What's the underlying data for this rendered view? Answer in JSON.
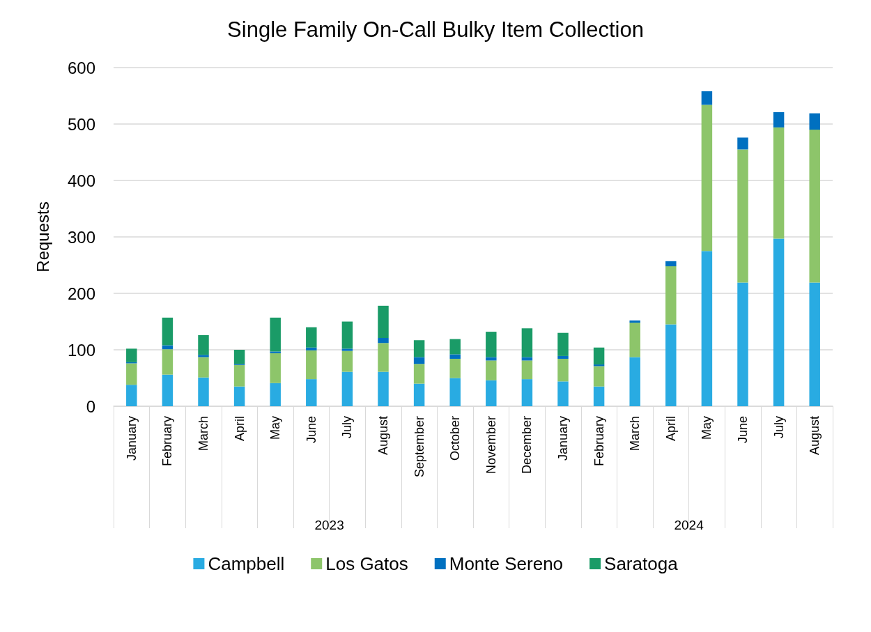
{
  "chart_data": {
    "type": "bar",
    "title": "Single Family On-Call Bulky Item Collection",
    "ylabel": "Requests",
    "categories": [
      "January",
      "February",
      "March",
      "April",
      "May",
      "June",
      "July",
      "August",
      "September",
      "October",
      "November",
      "December",
      "January",
      "February",
      "March",
      "April",
      "May",
      "June",
      "July",
      "August"
    ],
    "series": [
      {
        "name": "Campbell",
        "color": "#29abe2",
        "values": [
          38,
          56,
          51,
          35,
          41,
          48,
          61,
          61,
          40,
          50,
          46,
          48,
          44,
          35,
          87,
          145,
          275,
          219,
          297,
          219
        ]
      },
      {
        "name": "Los Gatos",
        "color": "#8dc56a",
        "values": [
          38,
          45,
          36,
          38,
          53,
          51,
          37,
          51,
          35,
          34,
          35,
          33,
          40,
          36,
          61,
          103,
          259,
          236,
          197,
          271
        ]
      },
      {
        "name": "Monte Sereno",
        "color": "#0070c0",
        "values": [
          2,
          7,
          4,
          2,
          3,
          5,
          4,
          9,
          12,
          8,
          6,
          6,
          5,
          3,
          4,
          9,
          24,
          21,
          27,
          29
        ]
      },
      {
        "name": "Saratoga",
        "color": "#1a9b67",
        "values": [
          24,
          49,
          35,
          25,
          60,
          36,
          48,
          57,
          30,
          27,
          45,
          51,
          41,
          30,
          0,
          0,
          0,
          0,
          0,
          0
        ]
      }
    ],
    "stacked": true,
    "ylim": [
      0,
      600
    ],
    "yticks": [
      0,
      100,
      200,
      300,
      400,
      500,
      600
    ],
    "grid": "y",
    "legend": "bottom",
    "annotations": [
      "2023",
      "2024"
    ]
  }
}
